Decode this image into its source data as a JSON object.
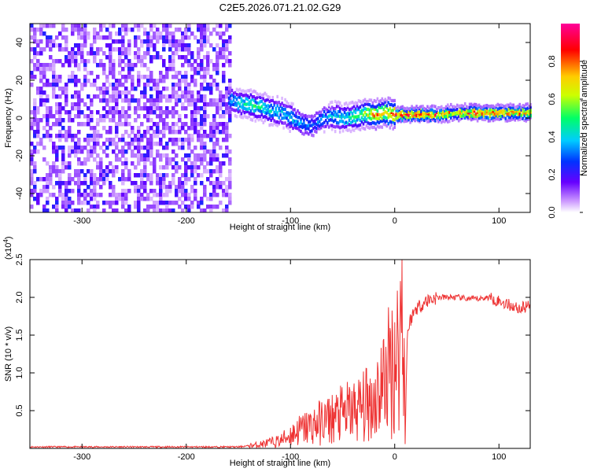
{
  "title": "C2E5.2026.071.21.02.G29",
  "chart_data": [
    {
      "type": "heatmap",
      "title": "C2E5.2026.071.21.02.G29",
      "xlabel": "Height of straight line (km)",
      "ylabel": "Frequency (Hz)",
      "xlim": [
        -350,
        130
      ],
      "ylim": [
        -50,
        50
      ],
      "xticks": [
        -300,
        -200,
        -100,
        0,
        100
      ],
      "yticks": [
        -40,
        -20,
        0,
        20,
        40
      ],
      "colorbar": {
        "label": "Normalized spectral amplitude",
        "range": [
          0,
          1
        ],
        "ticks": [
          0.0,
          0.2,
          0.4,
          0.6,
          0.8
        ],
        "colors": [
          "#ffffff",
          "#cc99ff",
          "#6600ff",
          "#0033ff",
          "#00ccff",
          "#00ff66",
          "#ccff00",
          "#ffcc00",
          "#ff0000",
          "#ff0099"
        ]
      },
      "noise_region": {
        "x_from": -350,
        "x_to": -157,
        "amplitude": "0.1-0.3"
      },
      "ridge": {
        "x": [
          -160,
          -150,
          -140,
          -130,
          -120,
          -110,
          -100,
          -90,
          -80,
          -70,
          -60,
          -50,
          -40,
          -30,
          -20,
          -10,
          0,
          20,
          40,
          60,
          80,
          100,
          130
        ],
        "freq": [
          10,
          8,
          7,
          6,
          4,
          3,
          0,
          -3,
          -4,
          0,
          1,
          0,
          1,
          2,
          2,
          3,
          2,
          2,
          2,
          3,
          3,
          3,
          3
        ],
        "amplitude": [
          0.35,
          0.45,
          0.5,
          0.5,
          0.45,
          0.4,
          0.4,
          0.35,
          0.3,
          0.35,
          0.4,
          0.45,
          0.5,
          0.6,
          0.8,
          0.7,
          0.9,
          0.9,
          0.85,
          0.75,
          0.9,
          0.85,
          0.8
        ]
      }
    },
    {
      "type": "line",
      "xlabel": "Height of straight line (km)",
      "ylabel": "SNR (10 * v/v)",
      "scale_label": "(x10",
      "scale_exponent": "4",
      "scale_suffix": ")",
      "xlim": [
        -350,
        130
      ],
      "ylim": [
        0,
        2.5
      ],
      "xticks": [
        -300,
        -200,
        -100,
        0,
        100
      ],
      "yticks": [
        0.5,
        1.0,
        1.5,
        2.0,
        2.5
      ],
      "series": [
        {
          "name": "SNR",
          "color": "#ee3333",
          "x": [
            -350,
            -200,
            -150,
            -130,
            -110,
            -100,
            -90,
            -80,
            -70,
            -60,
            -50,
            -40,
            -30,
            -20,
            -10,
            0,
            5,
            8,
            10,
            12,
            15,
            20,
            30,
            40,
            50,
            60,
            70,
            80,
            90,
            100,
            110,
            120,
            130
          ],
          "y": [
            0.02,
            0.02,
            0.02,
            0.05,
            0.1,
            0.18,
            0.25,
            0.3,
            0.35,
            0.4,
            0.45,
            0.5,
            0.55,
            0.65,
            0.9,
            1.2,
            1.35,
            2.5,
            0.1,
            1.5,
            1.7,
            1.85,
            1.95,
            2.0,
            2.0,
            2.0,
            1.98,
            1.98,
            2.0,
            1.95,
            1.9,
            1.85,
            1.9
          ]
        }
      ]
    }
  ]
}
